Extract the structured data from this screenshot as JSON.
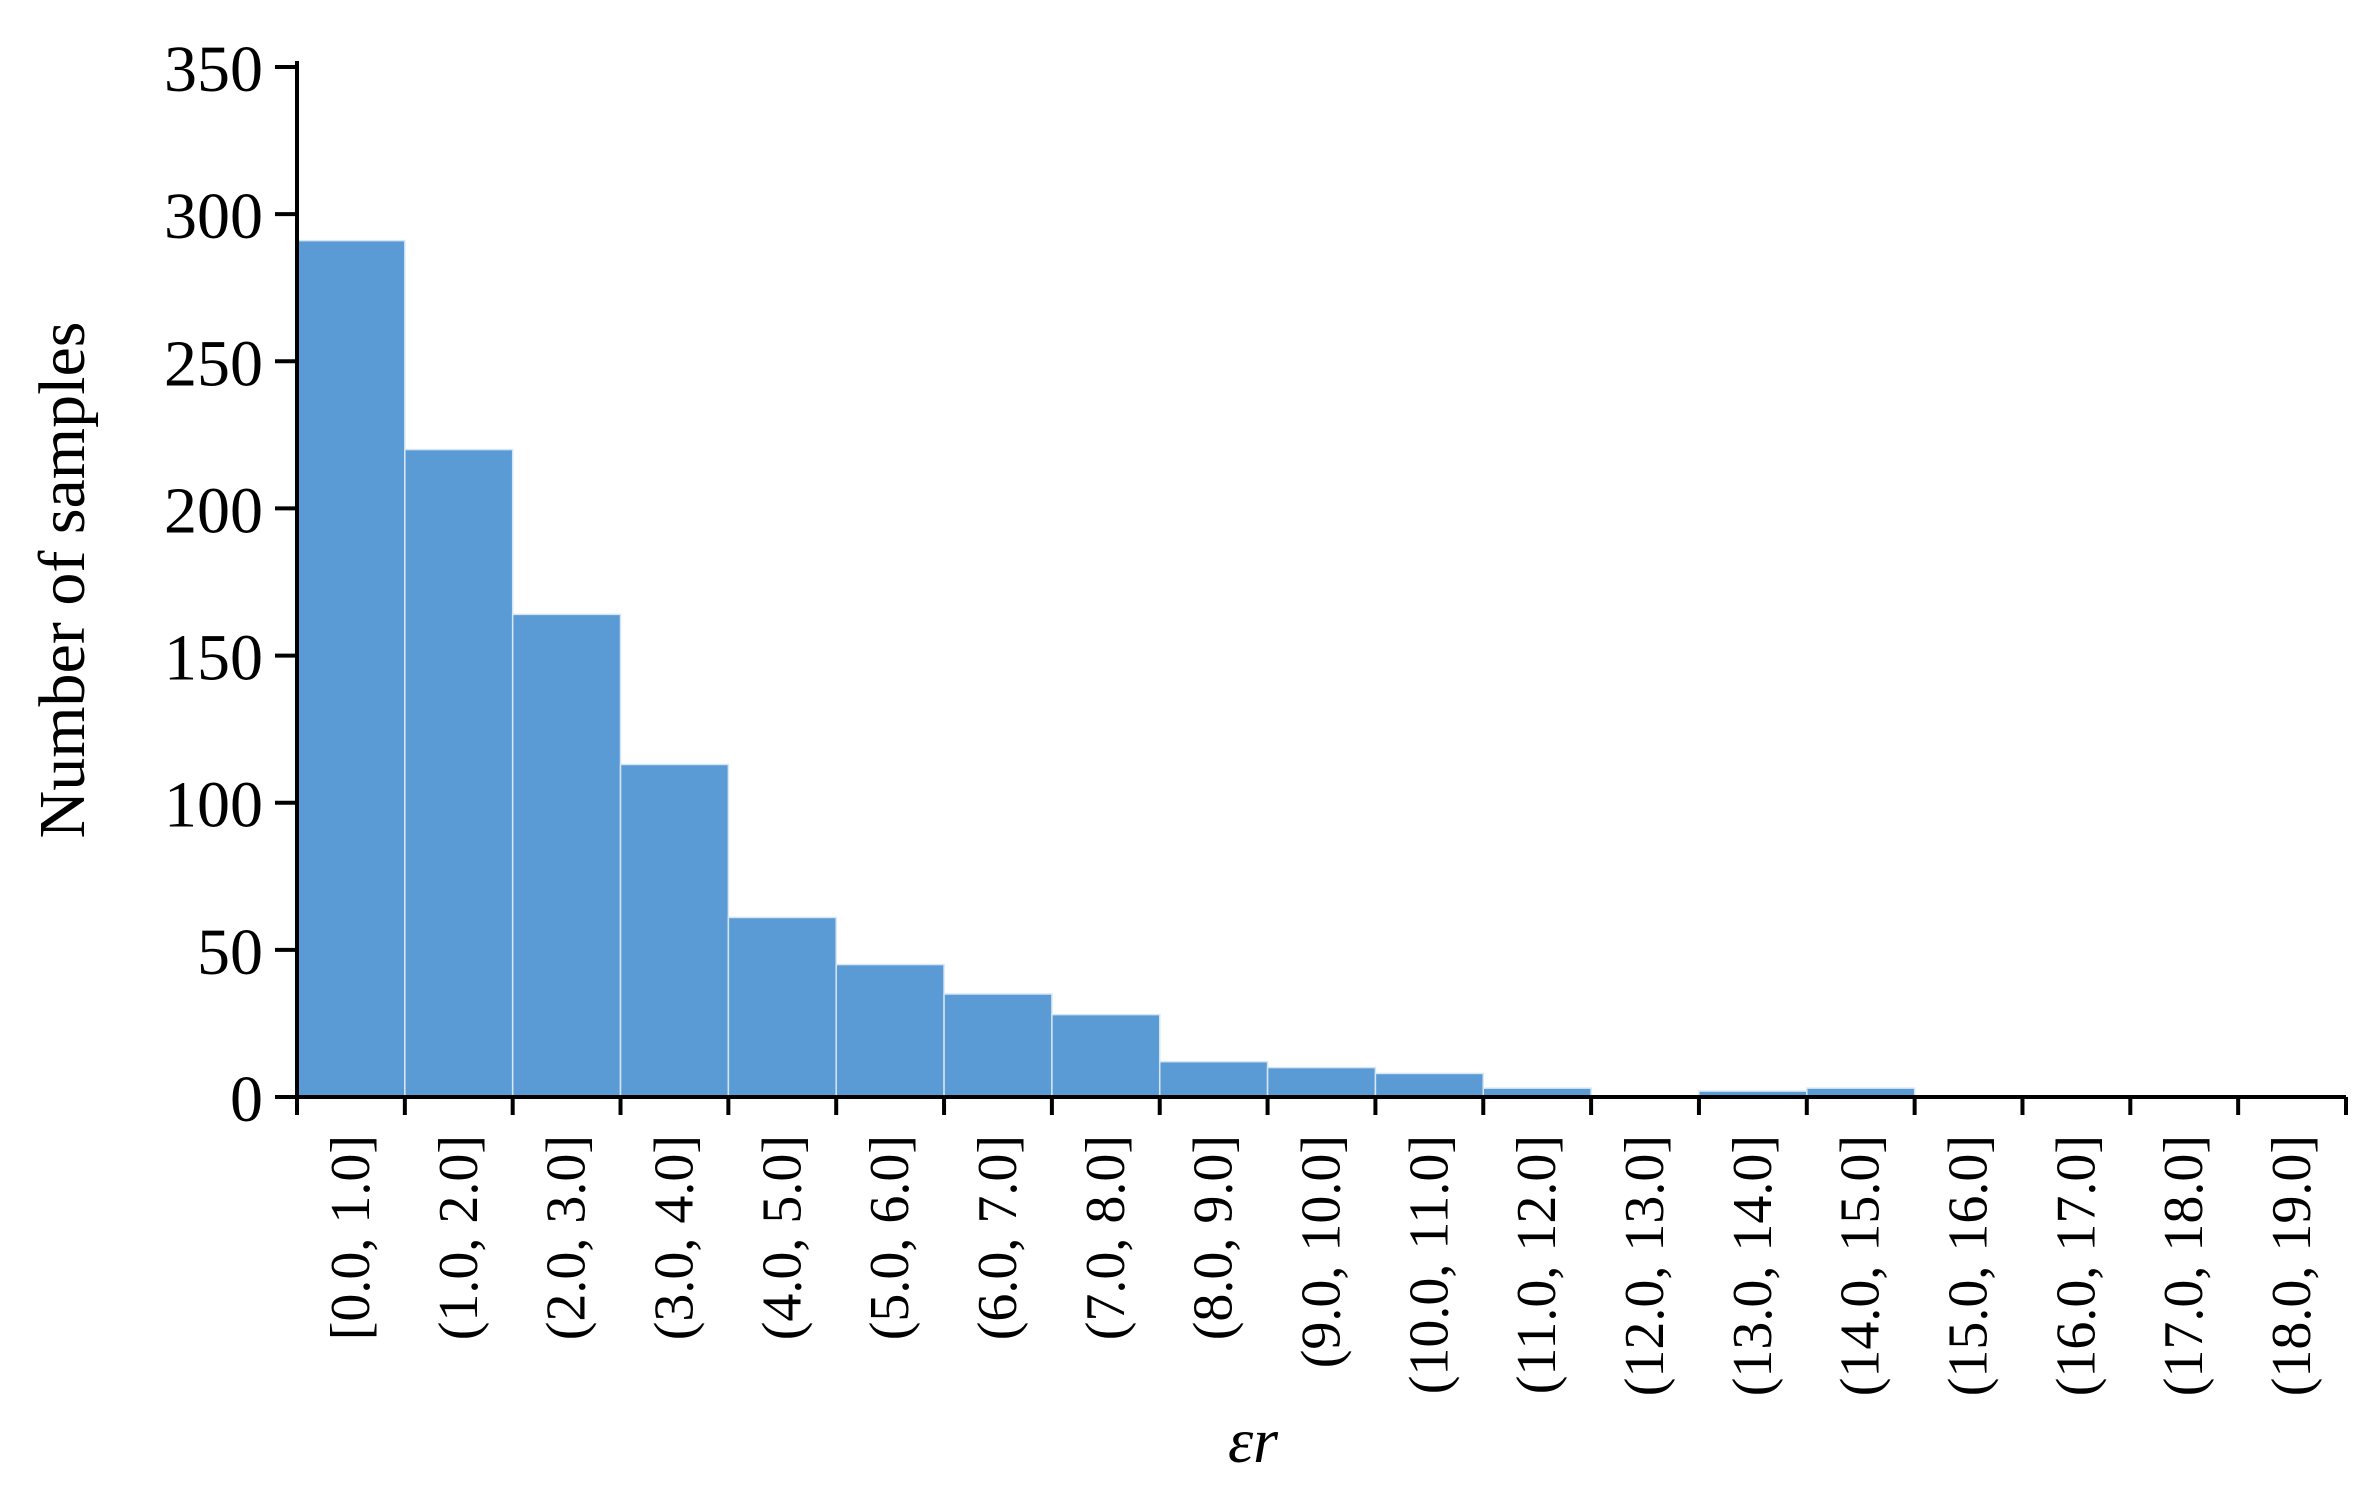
{
  "chart_data": {
    "type": "bar",
    "title": "",
    "xlabel": "εr",
    "ylabel": "Number of samples",
    "ylim": [
      0,
      350
    ],
    "yticks": [
      0,
      50,
      100,
      150,
      200,
      250,
      300,
      350
    ],
    "grid": false,
    "legend": "none",
    "categories": [
      "[0.0, 1.0]",
      "(1.0, 2.0]",
      "(2.0, 3.0]",
      "(3.0, 4.0]",
      "(4.0, 5.0]",
      "(5.0, 6.0]",
      "(6.0, 7.0]",
      "(7.0, 8.0]",
      "(8.0, 9.0]",
      "(9.0, 10.0]",
      "(10.0, 11.0]",
      "(11.0, 12.0]",
      "(12.0, 13.0]",
      "(13.0, 14.0]",
      "(14.0, 15.0]",
      "(15.0, 16.0]",
      "(16.0, 17.0]",
      "(17.0, 18.0]",
      "(18.0, 19.0]"
    ],
    "values": [
      291,
      220,
      164,
      113,
      61,
      45,
      35,
      28,
      12,
      10,
      8,
      3,
      0,
      2,
      3,
      0,
      0,
      0,
      0
    ],
    "bar_color": "#5b9bd5",
    "bar_edge_color": "#d6e6f5"
  }
}
